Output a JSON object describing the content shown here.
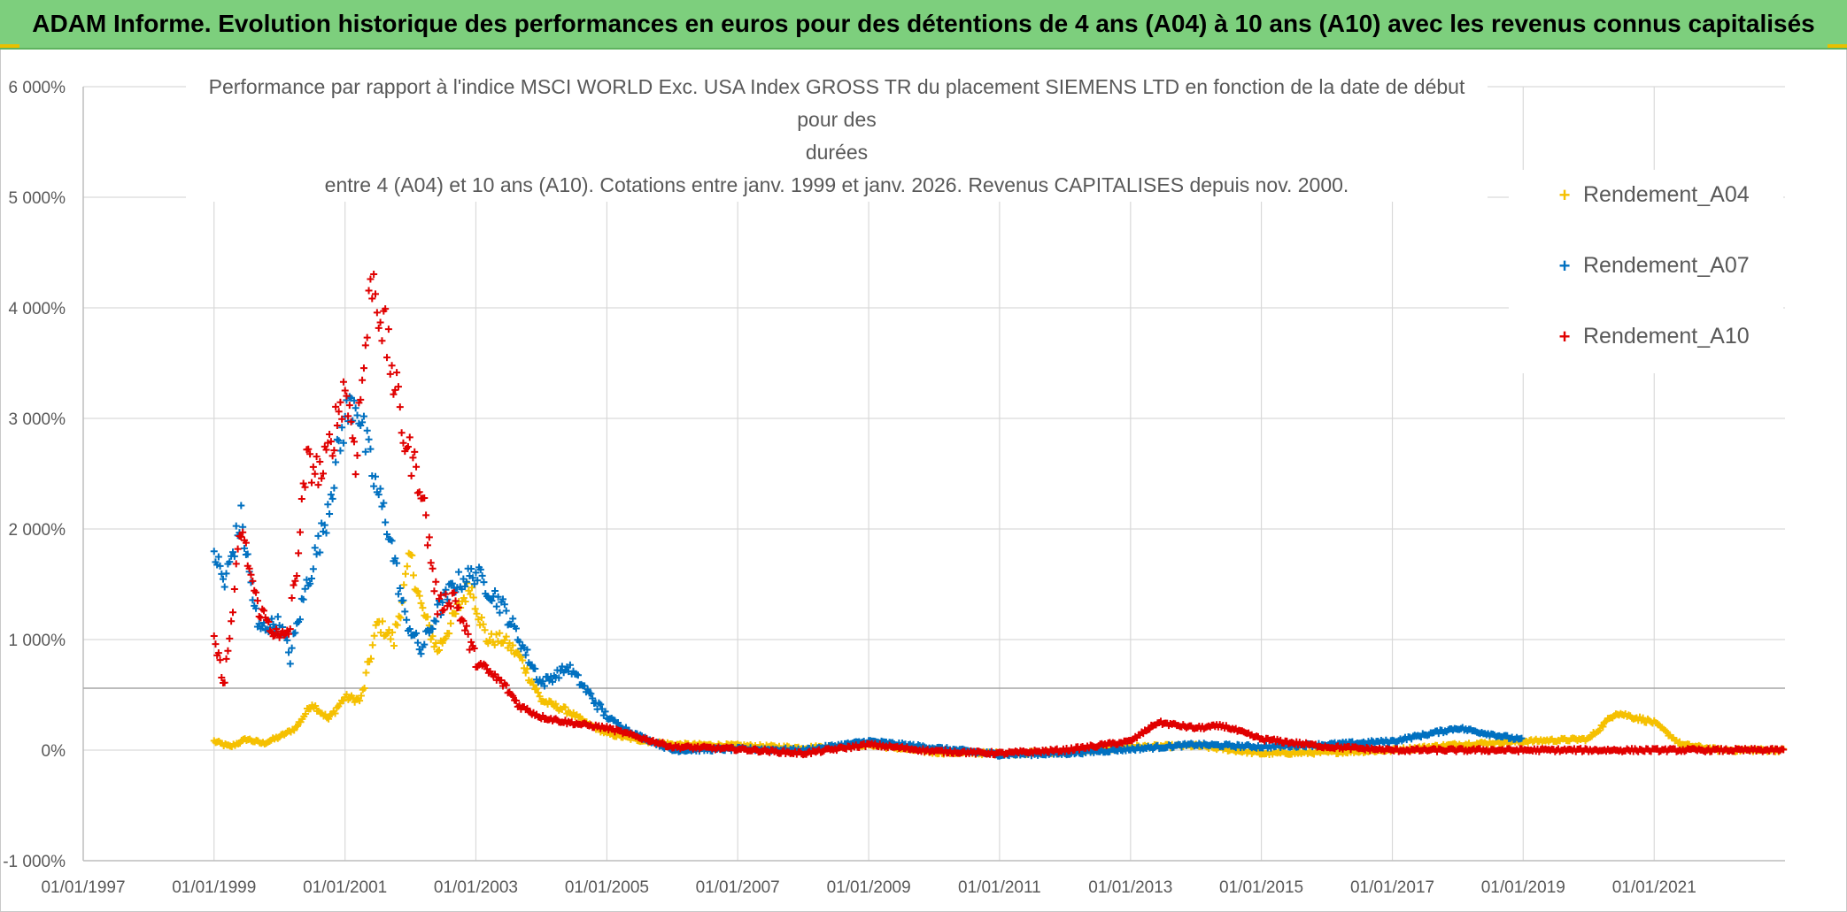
{
  "banner_title": "ADAM Informe. Evolution historique des performances en euros pour des détentions de 4 ans (A04) à 10 ans (A10) avec les revenus connus capitalisés",
  "chart_data": {
    "type": "scatter",
    "title_lines": [
      "Performance par rapport à l'indice MSCI WORLD Exc. USA Index GROSS TR  du placement SIEMENS LTD en fonction de la date de début pour des",
      "durées",
      "entre 4 (A04) et 10 ans (A10). Cotations entre janv. 1999 et janv. 2026. Revenus CAPITALISES depuis nov. 2000."
    ],
    "x_axis": {
      "type": "date",
      "min": "1997-01-01",
      "max": "2023-01-01",
      "tick_labels": [
        "01/01/1997",
        "01/01/1999",
        "01/01/2001",
        "01/01/2003",
        "01/01/2005",
        "01/01/2007",
        "01/01/2009",
        "01/01/2011",
        "01/01/2013",
        "01/01/2015",
        "01/01/2017",
        "01/01/2019",
        "01/01/2021"
      ]
    },
    "y_axis": {
      "min": -1000,
      "max": 6000,
      "unit": "%",
      "tick_labels": [
        "-1 000%",
        "0%",
        "1 000%",
        "2 000%",
        "3 000%",
        "4 000%",
        "5 000%",
        "6 000%"
      ]
    },
    "reference_line_y": 560,
    "grid": true,
    "legend_position": "top-right",
    "marker": "+",
    "series": [
      {
        "name": "Rendement_A04",
        "color": "#f5c000",
        "points": [
          [
            "1999-01-01",
            80
          ],
          [
            "1999-04-01",
            30
          ],
          [
            "1999-07-01",
            100
          ],
          [
            "1999-10-01",
            60
          ],
          [
            "2000-01-01",
            120
          ],
          [
            "2000-04-01",
            200
          ],
          [
            "2000-07-01",
            420
          ],
          [
            "2000-10-01",
            280
          ],
          [
            "2001-01-01",
            480
          ],
          [
            "2001-04-01",
            450
          ],
          [
            "2001-07-01",
            1150
          ],
          [
            "2001-10-01",
            1000
          ],
          [
            "2002-01-01",
            1750
          ],
          [
            "2002-03-01",
            1300
          ],
          [
            "2002-06-01",
            900
          ],
          [
            "2002-09-01",
            1200
          ],
          [
            "2002-12-01",
            1500
          ],
          [
            "2003-03-01",
            1000
          ],
          [
            "2003-06-01",
            1000
          ],
          [
            "2003-09-01",
            850
          ],
          [
            "2004-01-01",
            450
          ],
          [
            "2004-06-01",
            350
          ],
          [
            "2004-09-01",
            250
          ],
          [
            "2005-01-01",
            150
          ],
          [
            "2005-06-01",
            100
          ],
          [
            "2006-01-01",
            50
          ],
          [
            "2007-01-01",
            40
          ],
          [
            "2008-01-01",
            20
          ],
          [
            "2009-01-01",
            50
          ],
          [
            "2010-01-01",
            -20
          ],
          [
            "2011-01-01",
            -30
          ],
          [
            "2012-01-01",
            -20
          ],
          [
            "2013-01-01",
            30
          ],
          [
            "2014-01-01",
            40
          ],
          [
            "2015-01-01",
            -30
          ],
          [
            "2016-01-01",
            -20
          ],
          [
            "2017-01-01",
            0
          ],
          [
            "2018-01-01",
            50
          ],
          [
            "2019-01-01",
            80
          ],
          [
            "2020-01-01",
            100
          ],
          [
            "2020-06-01",
            340
          ],
          [
            "2021-01-01",
            250
          ],
          [
            "2021-06-01",
            50
          ],
          [
            "2022-01-01",
            0
          ],
          [
            "2023-01-01",
            0
          ]
        ]
      },
      {
        "name": "Rendement_A07",
        "color": "#0070c0",
        "points": [
          [
            "1999-01-01",
            1800
          ],
          [
            "1999-03-01",
            1500
          ],
          [
            "1999-06-01",
            2100
          ],
          [
            "1999-09-01",
            1100
          ],
          [
            "2000-01-01",
            1150
          ],
          [
            "2000-03-01",
            850
          ],
          [
            "2000-06-01",
            1500
          ],
          [
            "2000-09-01",
            2000
          ],
          [
            "2001-01-01",
            3000
          ],
          [
            "2001-03-01",
            3200
          ],
          [
            "2001-06-01",
            2500
          ],
          [
            "2001-09-01",
            2000
          ],
          [
            "2001-12-01",
            1200
          ],
          [
            "2002-03-01",
            900
          ],
          [
            "2002-06-01",
            1250
          ],
          [
            "2002-09-01",
            1500
          ],
          [
            "2003-01-01",
            1600
          ],
          [
            "2003-06-01",
            1300
          ],
          [
            "2003-09-01",
            1000
          ],
          [
            "2004-01-01",
            600
          ],
          [
            "2004-06-01",
            750
          ],
          [
            "2005-01-01",
            300
          ],
          [
            "2005-06-01",
            150
          ],
          [
            "2006-01-01",
            0
          ],
          [
            "2007-01-01",
            10
          ],
          [
            "2008-01-01",
            0
          ],
          [
            "2009-01-01",
            80
          ],
          [
            "2010-01-01",
            20
          ],
          [
            "2011-01-01",
            -40
          ],
          [
            "2012-01-01",
            -30
          ],
          [
            "2013-01-01",
            10
          ],
          [
            "2014-01-01",
            50
          ],
          [
            "2015-01-01",
            30
          ],
          [
            "2016-01-01",
            50
          ],
          [
            "2017-01-01",
            80
          ],
          [
            "2018-01-01",
            200
          ],
          [
            "2019-01-01",
            90
          ]
        ]
      },
      {
        "name": "Rendement_A10",
        "color": "#e00000",
        "points": [
          [
            "1999-01-01",
            1000
          ],
          [
            "1999-03-01",
            600
          ],
          [
            "1999-06-01",
            2000
          ],
          [
            "1999-09-01",
            1300
          ],
          [
            "2000-01-01",
            1000
          ],
          [
            "2000-03-01",
            1100
          ],
          [
            "2000-06-01",
            2600
          ],
          [
            "2000-09-01",
            2500
          ],
          [
            "2001-01-01",
            3300
          ],
          [
            "2001-03-01",
            2700
          ],
          [
            "2001-06-01",
            4300
          ],
          [
            "2001-09-01",
            3600
          ],
          [
            "2001-12-01",
            2800
          ],
          [
            "2002-03-01",
            2400
          ],
          [
            "2002-06-01",
            1300
          ],
          [
            "2002-09-01",
            1400
          ],
          [
            "2003-01-01",
            800
          ],
          [
            "2003-06-01",
            600
          ],
          [
            "2003-09-01",
            400
          ],
          [
            "2004-01-01",
            300
          ],
          [
            "2004-06-01",
            250
          ],
          [
            "2005-01-01",
            200
          ],
          [
            "2005-06-01",
            130
          ],
          [
            "2006-01-01",
            30
          ],
          [
            "2007-01-01",
            10
          ],
          [
            "2008-01-01",
            -30
          ],
          [
            "2009-01-01",
            50
          ],
          [
            "2010-01-01",
            -10
          ],
          [
            "2011-01-01",
            -30
          ],
          [
            "2012-01-01",
            0
          ],
          [
            "2013-01-01",
            80
          ],
          [
            "2013-06-01",
            250
          ],
          [
            "2014-01-01",
            200
          ],
          [
            "2014-06-01",
            220
          ],
          [
            "2015-01-01",
            100
          ],
          [
            "2016-01-01",
            30
          ],
          [
            "2017-01-01",
            0
          ],
          [
            "2018-01-01",
            0
          ],
          [
            "2019-01-01",
            0
          ],
          [
            "2020-01-01",
            0
          ],
          [
            "2021-01-01",
            0
          ],
          [
            "2022-01-01",
            0
          ],
          [
            "2023-01-01",
            0
          ]
        ]
      }
    ]
  }
}
